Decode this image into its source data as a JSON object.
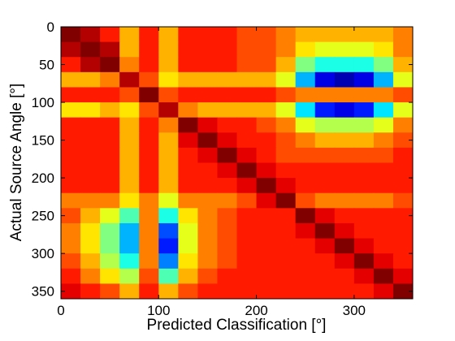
{
  "chart_data": {
    "type": "heatmap",
    "xlabel": "Predicted Classification [°]",
    "ylabel": "Actual Source Angle [°]",
    "colormap": "jet",
    "clim": [
      0,
      1
    ],
    "xlim": [
      0,
      360
    ],
    "ylim": [
      0,
      360
    ],
    "y_reversed": true,
    "xticks": [
      0,
      100,
      200,
      300
    ],
    "yticks": [
      0,
      50,
      100,
      150,
      200,
      250,
      300,
      350
    ],
    "x": [
      10,
      30,
      50,
      70,
      90,
      110,
      130,
      150,
      170,
      190,
      210,
      230,
      250,
      270,
      290,
      310,
      330,
      350
    ],
    "y": [
      10,
      30,
      50,
      70,
      90,
      110,
      130,
      150,
      170,
      190,
      210,
      230,
      250,
      270,
      290,
      310,
      330,
      350
    ],
    "values": [
      [
        1.0,
        0.95,
        0.85,
        0.7,
        0.85,
        0.7,
        0.85,
        0.85,
        0.85,
        0.8,
        0.8,
        0.75,
        0.7,
        0.7,
        0.7,
        0.7,
        0.7,
        0.75
      ],
      [
        0.95,
        1.0,
        0.95,
        0.7,
        0.85,
        0.7,
        0.85,
        0.85,
        0.85,
        0.8,
        0.8,
        0.75,
        0.65,
        0.6,
        0.6,
        0.6,
        0.65,
        0.75
      ],
      [
        0.85,
        0.95,
        1.0,
        0.75,
        0.85,
        0.7,
        0.85,
        0.85,
        0.85,
        0.8,
        0.8,
        0.7,
        0.5,
        0.4,
        0.4,
        0.4,
        0.5,
        0.7
      ],
      [
        0.7,
        0.7,
        0.75,
        0.95,
        0.8,
        0.65,
        0.7,
        0.7,
        0.7,
        0.7,
        0.7,
        0.6,
        0.3,
        0.1,
        0.05,
        0.1,
        0.3,
        0.6
      ],
      [
        0.85,
        0.85,
        0.85,
        0.8,
        1.0,
        0.8,
        0.85,
        0.85,
        0.85,
        0.85,
        0.85,
        0.8,
        0.75,
        0.75,
        0.75,
        0.75,
        0.75,
        0.8
      ],
      [
        0.65,
        0.65,
        0.7,
        0.65,
        0.8,
        0.95,
        0.75,
        0.7,
        0.7,
        0.7,
        0.7,
        0.6,
        0.35,
        0.15,
        0.1,
        0.15,
        0.35,
        0.6
      ],
      [
        0.85,
        0.85,
        0.85,
        0.7,
        0.85,
        0.75,
        1.0,
        0.9,
        0.85,
        0.85,
        0.8,
        0.75,
        0.6,
        0.55,
        0.55,
        0.55,
        0.6,
        0.75
      ],
      [
        0.85,
        0.85,
        0.85,
        0.7,
        0.85,
        0.7,
        0.9,
        1.0,
        0.9,
        0.85,
        0.85,
        0.8,
        0.75,
        0.7,
        0.7,
        0.7,
        0.75,
        0.8
      ],
      [
        0.85,
        0.85,
        0.85,
        0.7,
        0.85,
        0.7,
        0.85,
        0.9,
        1.0,
        0.9,
        0.85,
        0.8,
        0.8,
        0.8,
        0.8,
        0.8,
        0.8,
        0.85
      ],
      [
        0.85,
        0.85,
        0.85,
        0.7,
        0.85,
        0.7,
        0.85,
        0.85,
        0.9,
        1.0,
        0.9,
        0.85,
        0.85,
        0.85,
        0.85,
        0.85,
        0.85,
        0.85
      ],
      [
        0.85,
        0.85,
        0.85,
        0.7,
        0.85,
        0.7,
        0.85,
        0.85,
        0.85,
        0.9,
        1.0,
        0.9,
        0.85,
        0.85,
        0.85,
        0.85,
        0.85,
        0.85
      ],
      [
        0.75,
        0.75,
        0.75,
        0.65,
        0.75,
        0.6,
        0.75,
        0.75,
        0.75,
        0.8,
        0.9,
        1.0,
        0.8,
        0.75,
        0.75,
        0.75,
        0.75,
        0.8
      ],
      [
        0.8,
        0.7,
        0.6,
        0.45,
        0.75,
        0.4,
        0.65,
        0.75,
        0.8,
        0.85,
        0.85,
        0.85,
        1.0,
        0.9,
        0.85,
        0.85,
        0.85,
        0.85
      ],
      [
        0.75,
        0.65,
        0.5,
        0.3,
        0.75,
        0.2,
        0.6,
        0.75,
        0.8,
        0.85,
        0.85,
        0.85,
        0.9,
        1.0,
        0.9,
        0.85,
        0.85,
        0.85
      ],
      [
        0.75,
        0.65,
        0.5,
        0.3,
        0.75,
        0.15,
        0.6,
        0.75,
        0.8,
        0.85,
        0.85,
        0.85,
        0.85,
        0.9,
        1.0,
        0.9,
        0.85,
        0.85
      ],
      [
        0.8,
        0.7,
        0.55,
        0.4,
        0.75,
        0.25,
        0.65,
        0.75,
        0.8,
        0.85,
        0.85,
        0.85,
        0.85,
        0.85,
        0.9,
        1.0,
        0.9,
        0.85
      ],
      [
        0.85,
        0.75,
        0.65,
        0.55,
        0.8,
        0.45,
        0.7,
        0.8,
        0.85,
        0.85,
        0.85,
        0.85,
        0.85,
        0.85,
        0.85,
        0.9,
        1.0,
        0.9
      ],
      [
        0.9,
        0.85,
        0.8,
        0.7,
        0.85,
        0.7,
        0.8,
        0.85,
        0.85,
        0.85,
        0.85,
        0.85,
        0.85,
        0.85,
        0.85,
        0.85,
        0.9,
        1.0
      ]
    ]
  }
}
